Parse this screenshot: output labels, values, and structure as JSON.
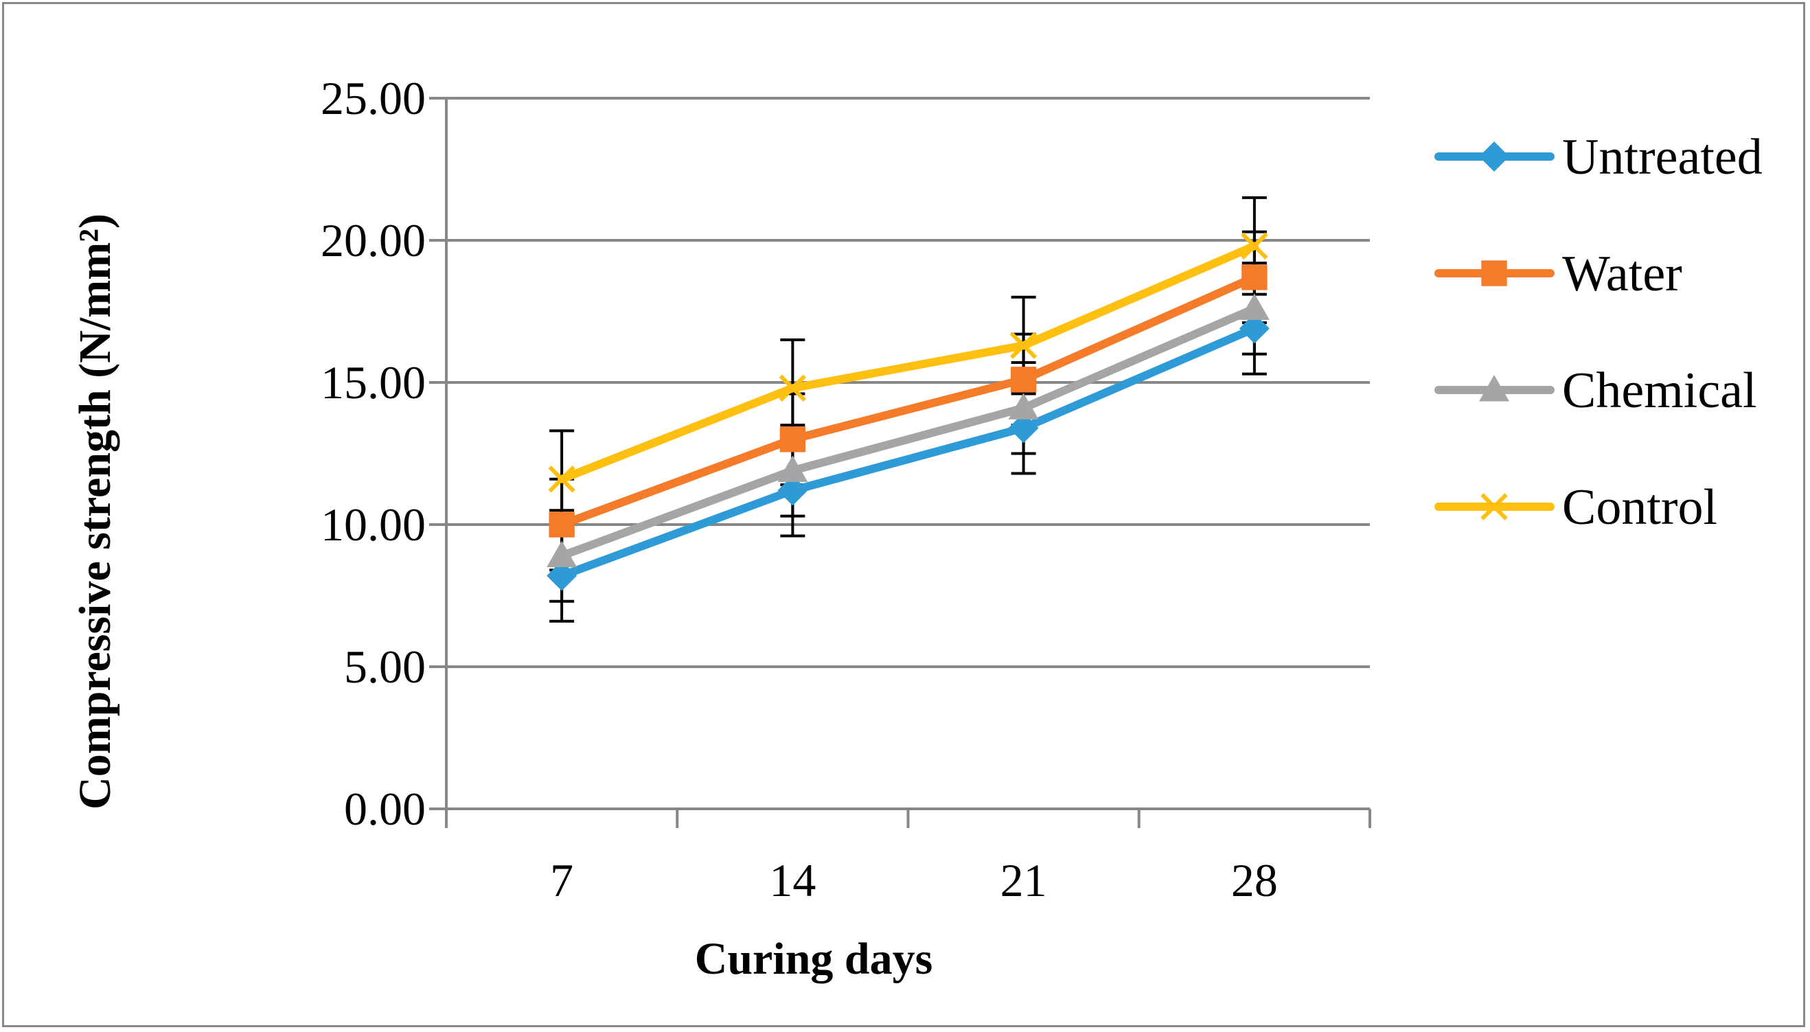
{
  "chart_data": {
    "type": "line",
    "title": "",
    "xlabel": "Curing days",
    "ylabel": "Compressive strength (N/mm²)",
    "categories": [
      "7",
      "14",
      "21",
      "28"
    ],
    "ylim": [
      0,
      25
    ],
    "yticks": [
      "0.00",
      "5.00",
      "10.00",
      "15.00",
      "20.00",
      "25.00"
    ],
    "grid": true,
    "legend_position": "right",
    "series": [
      {
        "name": "Untreated",
        "color": "#2e9bd6",
        "marker": "diamond",
        "values": [
          8.2,
          11.2,
          13.4,
          16.9
        ],
        "error": [
          1.6,
          1.6,
          1.6,
          1.6
        ]
      },
      {
        "name": "Water",
        "color": "#f47b2a",
        "marker": "square",
        "values": [
          10.0,
          13.0,
          15.1,
          18.7
        ],
        "error": [
          1.6,
          1.6,
          1.6,
          1.6
        ]
      },
      {
        "name": "Chemical",
        "color": "#a5a5a5",
        "marker": "triangle",
        "values": [
          8.9,
          11.9,
          14.1,
          17.6
        ],
        "error": [
          1.6,
          1.6,
          1.6,
          1.6
        ]
      },
      {
        "name": "Control",
        "color": "#fdc010",
        "marker": "x",
        "values": [
          11.6,
          14.8,
          16.3,
          19.8
        ],
        "error": [
          1.7,
          1.7,
          1.7,
          1.7
        ]
      }
    ]
  }
}
